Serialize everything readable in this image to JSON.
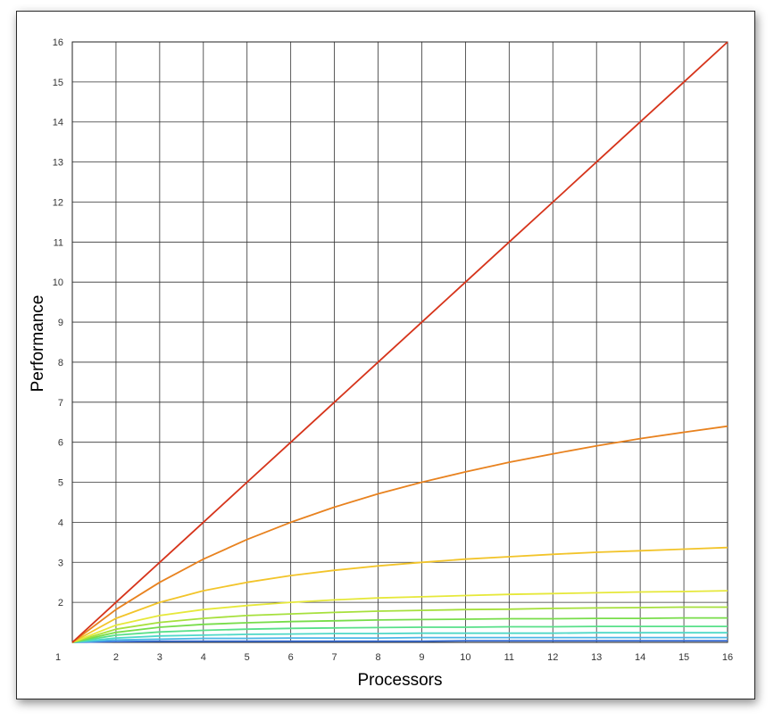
{
  "chart_data": {
    "type": "line",
    "title": "",
    "xlabel": "Processors",
    "ylabel": "Performance",
    "xlim": [
      1,
      16
    ],
    "ylim": [
      1,
      16
    ],
    "x_ticks": [
      1,
      2,
      3,
      4,
      5,
      6,
      7,
      8,
      9,
      10,
      11,
      12,
      13,
      14,
      15,
      16
    ],
    "y_ticks": [
      2,
      3,
      4,
      5,
      6,
      7,
      8,
      9,
      10,
      11,
      12,
      13,
      14,
      15,
      16
    ],
    "grid": true,
    "x": [
      1,
      2,
      3,
      4,
      5,
      6,
      7,
      8,
      9,
      10,
      11,
      12,
      13,
      14,
      15,
      16
    ],
    "series": [
      {
        "color": "#d6341b",
        "values": [
          1.0,
          2.0,
          3.0,
          4.0,
          5.0,
          6.0,
          7.0,
          8.0,
          9.0,
          10.0,
          11.0,
          12.0,
          13.0,
          14.0,
          15.0,
          16.0
        ]
      },
      {
        "color": "#e8821f",
        "values": [
          1.0,
          1.82,
          2.5,
          3.08,
          3.57,
          4.0,
          4.38,
          4.71,
          5.0,
          5.26,
          5.5,
          5.71,
          5.91,
          6.09,
          6.25,
          6.4
        ]
      },
      {
        "color": "#f2c42a",
        "values": [
          1.0,
          1.6,
          2.0,
          2.29,
          2.5,
          2.67,
          2.8,
          2.91,
          3.0,
          3.08,
          3.14,
          3.2,
          3.25,
          3.29,
          3.33,
          3.37
        ]
      },
      {
        "color": "#e6e83a",
        "values": [
          1.0,
          1.43,
          1.67,
          1.82,
          1.92,
          2.0,
          2.06,
          2.11,
          2.14,
          2.17,
          2.2,
          2.22,
          2.24,
          2.26,
          2.27,
          2.29
        ]
      },
      {
        "color": "#a6e03c",
        "values": [
          1.0,
          1.33,
          1.5,
          1.6,
          1.67,
          1.71,
          1.75,
          1.78,
          1.8,
          1.82,
          1.83,
          1.85,
          1.86,
          1.87,
          1.88,
          1.88
        ]
      },
      {
        "color": "#78dd4a",
        "values": [
          1.0,
          1.25,
          1.38,
          1.45,
          1.49,
          1.52,
          1.54,
          1.56,
          1.57,
          1.58,
          1.59,
          1.59,
          1.6,
          1.6,
          1.61,
          1.61
        ]
      },
      {
        "color": "#58e089",
        "values": [
          1.0,
          1.18,
          1.26,
          1.3,
          1.33,
          1.35,
          1.36,
          1.37,
          1.38,
          1.38,
          1.39,
          1.39,
          1.4,
          1.4,
          1.4,
          1.4
        ]
      },
      {
        "color": "#4fd8c8",
        "values": [
          1.0,
          1.11,
          1.16,
          1.18,
          1.2,
          1.21,
          1.22,
          1.22,
          1.23,
          1.23,
          1.23,
          1.23,
          1.24,
          1.24,
          1.24,
          1.24
        ]
      },
      {
        "color": "#4bb6e6",
        "values": [
          1.0,
          1.06,
          1.08,
          1.1,
          1.1,
          1.11,
          1.11,
          1.11,
          1.12,
          1.12,
          1.12,
          1.12,
          1.12,
          1.12,
          1.12,
          1.12
        ]
      },
      {
        "color": "#3b6fd6",
        "values": [
          1.0,
          1.02,
          1.03,
          1.03,
          1.03,
          1.03,
          1.03,
          1.03,
          1.03,
          1.04,
          1.04,
          1.04,
          1.04,
          1.04,
          1.04,
          1.04
        ]
      }
    ]
  }
}
